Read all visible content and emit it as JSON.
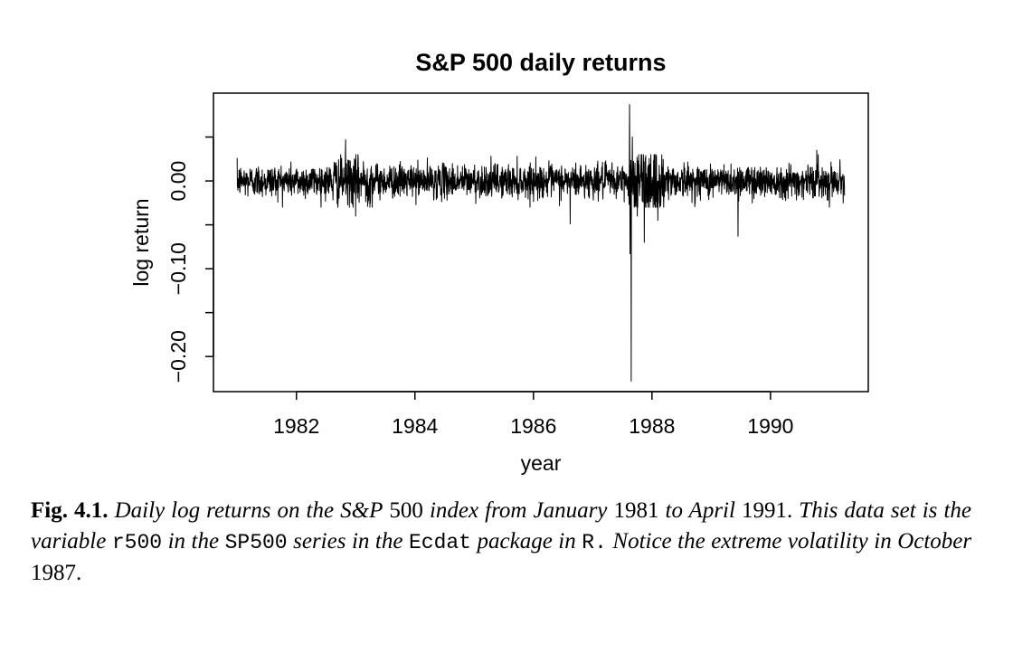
{
  "chart_data": {
    "type": "line",
    "title": "S&P 500 daily returns",
    "xlabel": "year",
    "ylabel": "log return",
    "xlim": [
      1980.6,
      1991.65
    ],
    "ylim": [
      -0.24,
      0.1
    ],
    "x_ticks": [
      "1982",
      "1984",
      "1986",
      "1988",
      "1990"
    ],
    "y_ticks": [
      "-0.20",
      "-0.10",
      "0.00"
    ],
    "y_ticks_unlabeled": [
      -0.15,
      -0.05,
      0.05
    ],
    "grid": false,
    "legend": "none",
    "x_range": [
      1981.0,
      1991.25
    ],
    "typical_band": [
      -0.015,
      0.015
    ],
    "notable_points": [
      {
        "x": 1982.83,
        "y": 0.047
      },
      {
        "x": 1983.0,
        "y": -0.04
      },
      {
        "x": 1986.62,
        "y": -0.049
      },
      {
        "x": 1987.62,
        "y": 0.087
      },
      {
        "x": 1987.63,
        "y": -0.083
      },
      {
        "x": 1987.65,
        "y": -0.228
      },
      {
        "x": 1987.67,
        "y": 0.05
      },
      {
        "x": 1987.75,
        "y": -0.04
      },
      {
        "x": 1987.87,
        "y": -0.07
      },
      {
        "x": 1988.1,
        "y": -0.045
      },
      {
        "x": 1989.45,
        "y": -0.063
      },
      {
        "x": 1990.78,
        "y": 0.035
      }
    ],
    "line_color": "#000000"
  },
  "caption": {
    "label": "Fig. 4.1.",
    "s1": "Daily log returns on the S&P",
    "n1": "500",
    "s2": "index from January",
    "n2": "1981",
    "s3": "to April",
    "n3": "1991.",
    "s4": "This data set is the variable",
    "c1": "r500",
    "s5": "in the",
    "c2": "SP500",
    "s6": "series in the",
    "c3": "Ecdat",
    "s7": "package in",
    "c4": "R.",
    "s8": "Notice the extreme volatility in October",
    "n4": "1987."
  }
}
